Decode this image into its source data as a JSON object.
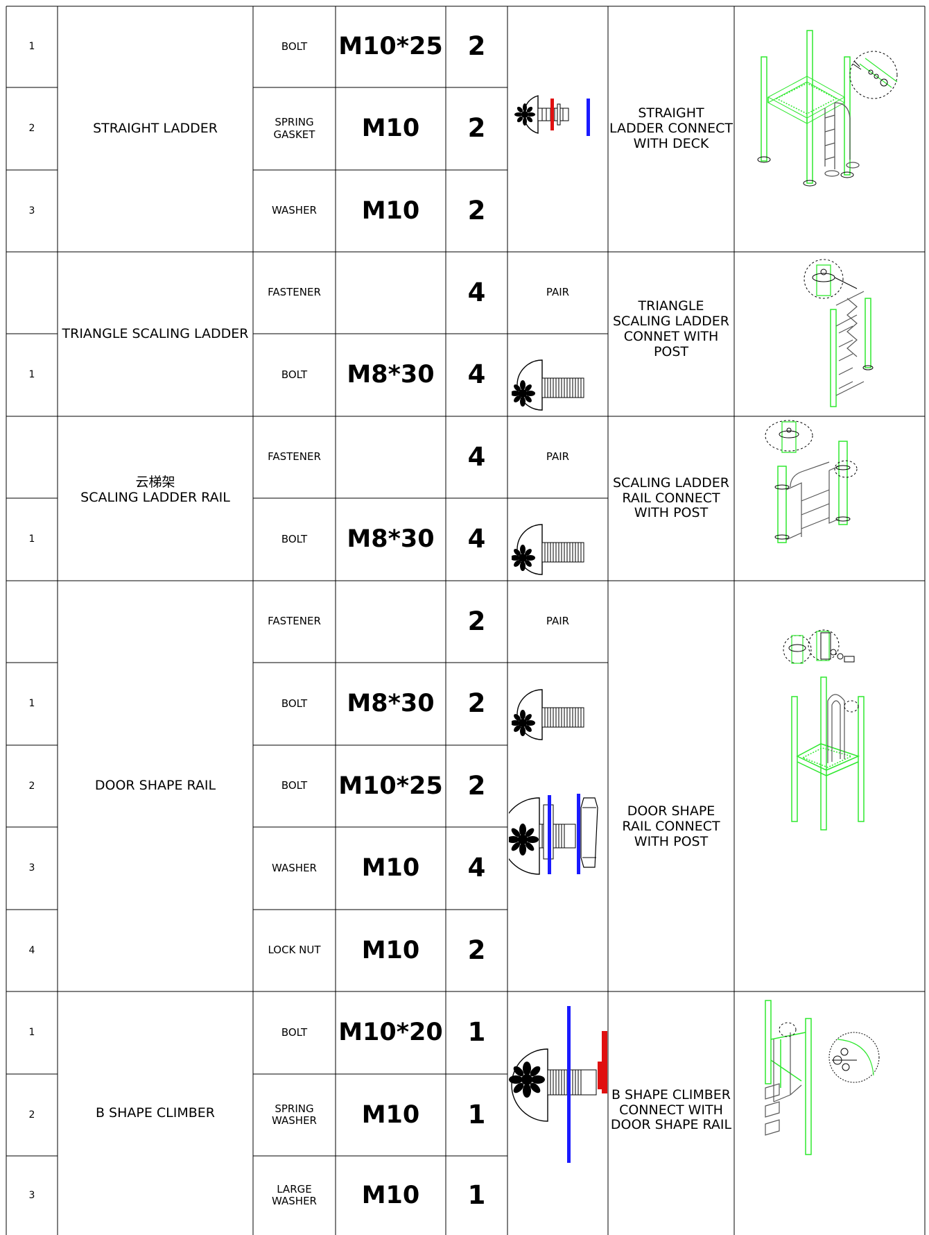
{
  "sections": [
    {
      "group": "STRAIGHT LADDER",
      "connection": "STRAIGHT\nLADDER CONNECT\nWITH DECK",
      "rows": [
        {
          "no": "1",
          "part": "BOLT",
          "spec": "M10*25",
          "qty": "2",
          "note": ""
        },
        {
          "no": "2",
          "part": "SPRING\nGASKET",
          "spec": "M10",
          "qty": "2",
          "note": ""
        },
        {
          "no": "3",
          "part": "WASHER",
          "spec": "M10",
          "qty": "2",
          "note": ""
        }
      ]
    },
    {
      "group": "TRIANGLE SCALING LADDER",
      "connection": "TRIANGLE\nSCALING LADDER\nCONNET WITH\nPOST",
      "rows": [
        {
          "no": "",
          "part": "FASTENER",
          "spec": "",
          "qty": "4",
          "note": "PAIR"
        },
        {
          "no": "1",
          "part": "BOLT",
          "spec": "M8*30",
          "qty": "4",
          "note": ""
        }
      ]
    },
    {
      "group": "云梯架\nSCALING LADDER RAIL",
      "connection": "SCALING LADDER\nRAIL CONNECT\nWITH POST",
      "rows": [
        {
          "no": "",
          "part": "FASTENER",
          "spec": "",
          "qty": "4",
          "note": "PAIR"
        },
        {
          "no": "1",
          "part": "BOLT",
          "spec": "M8*30",
          "qty": "4",
          "note": ""
        }
      ]
    },
    {
      "group": "DOOR SHAPE RAIL",
      "connection": "DOOR SHAPE\nRAIL CONNECT\nWITH POST",
      "rows": [
        {
          "no": "",
          "part": "FASTENER",
          "spec": "",
          "qty": "2",
          "note": "PAIR"
        },
        {
          "no": "1",
          "part": "BOLT",
          "spec": "M8*30",
          "qty": "2",
          "note": ""
        },
        {
          "no": "2",
          "part": "BOLT",
          "spec": "M10*25",
          "qty": "2",
          "note": ""
        },
        {
          "no": "3",
          "part": "WASHER",
          "spec": "M10",
          "qty": "4",
          "note": ""
        },
        {
          "no": "4",
          "part": "LOCK NUT",
          "spec": "M10",
          "qty": "2",
          "note": ""
        }
      ]
    },
    {
      "group": "B SHAPE   CLIMBER",
      "connection": "B SHAPE CLIMBER\nCONNECT WITH\nDOOR SHAPE RAIL",
      "rows": [
        {
          "no": "1",
          "part": "BOLT",
          "spec": "M10*20",
          "qty": "1",
          "note": ""
        },
        {
          "no": "2",
          "part": "SPRING\nWASHER",
          "spec": "M10",
          "qty": "1",
          "note": ""
        },
        {
          "no": "3",
          "part": "LARGE\nWASHER",
          "spec": "M10",
          "qty": "1",
          "note": ""
        }
      ]
    }
  ],
  "icons": {
    "bolt": "bolt-icon",
    "bolt_assembly": "bolt-washer-assembly-icon",
    "diagram": "assembly-diagram-icon"
  },
  "colors": {
    "line": "#000000",
    "diagram_green": "#2ee82e",
    "washer_blue": "#1a1aff",
    "gasket_red": "#e01010"
  }
}
